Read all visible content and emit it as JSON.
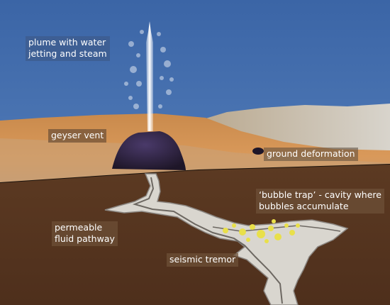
{
  "labels": {
    "plume": "plume with water\njetting and steam",
    "geyser_vent": "geyser vent",
    "ground_deformation": "ground deformation",
    "bubble_trap": "‘bubble trap’ - cavity where\nbubbles accumulate",
    "fluid_pathway": "permeable\nfluid pathway",
    "seismic_tremor": "seismic tremor"
  },
  "colors": {
    "sky": "#3f6aa8",
    "sand": "#d08a45",
    "rock_surface": "#c9c2b4",
    "subsurface": "#5a3520",
    "vent": "#2e2340",
    "pathway": "#d9d6cf",
    "bubbles": "#e9e04a",
    "jet": "#ffffff"
  }
}
